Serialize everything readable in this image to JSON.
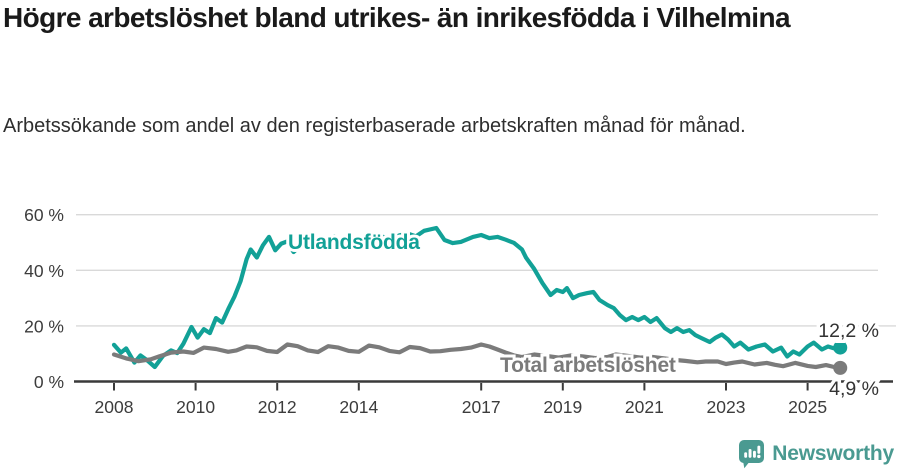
{
  "header": {
    "title": "Högre arbetslöshet bland utrikes- än inrikesfödda i Vilhelmina",
    "subtitle": "Arbetssökande som andel av den registerbaserade arbetskraften månad för månad."
  },
  "chart_data": {
    "type": "line",
    "title": "Högre arbetslöshet bland utrikes- än inrikesfödda i Vilhelmina",
    "subtitle": "Arbetssökande som andel av den registerbaserade arbetskraften månad för månad.",
    "xlabel": "",
    "ylabel": "",
    "grid": true,
    "ylim": [
      0,
      60
    ],
    "xlim": [
      2008,
      2026
    ],
    "yticks": [
      {
        "value": 0,
        "label": "0 %"
      },
      {
        "value": 20,
        "label": "20 %"
      },
      {
        "value": 40,
        "label": "40 %"
      },
      {
        "value": 60,
        "label": "60 %"
      }
    ],
    "xticks": [
      {
        "value": 2008,
        "label": "2008"
      },
      {
        "value": 2010,
        "label": "2010"
      },
      {
        "value": 2012,
        "label": "2012"
      },
      {
        "value": 2014,
        "label": "2014"
      },
      {
        "value": 2017,
        "label": "2017"
      },
      {
        "value": 2019,
        "label": "2019"
      },
      {
        "value": 2021,
        "label": "2021"
      },
      {
        "value": 2023,
        "label": "2023"
      },
      {
        "value": 2025,
        "label": "2025"
      }
    ],
    "series": [
      {
        "id": "utlandsfodda",
        "label": "Utlandsfödda",
        "color": "#12a197",
        "end_label": "12,2 %",
        "end_value": 12.2,
        "points": [
          [
            2008.0,
            13.2
          ],
          [
            2008.17,
            10.4
          ],
          [
            2008.3,
            11.9
          ],
          [
            2008.5,
            6.8
          ],
          [
            2008.65,
            9.4
          ],
          [
            2008.8,
            7.8
          ],
          [
            2009.0,
            5.2
          ],
          [
            2009.2,
            9.2
          ],
          [
            2009.4,
            11.2
          ],
          [
            2009.55,
            10.2
          ],
          [
            2009.7,
            13.6
          ],
          [
            2009.9,
            19.6
          ],
          [
            2010.05,
            15.8
          ],
          [
            2010.2,
            18.8
          ],
          [
            2010.35,
            17.4
          ],
          [
            2010.5,
            22.8
          ],
          [
            2010.65,
            21.2
          ],
          [
            2010.8,
            26.0
          ],
          [
            2010.95,
            30.5
          ],
          [
            2011.1,
            36.0
          ],
          [
            2011.25,
            44.0
          ],
          [
            2011.35,
            47.5
          ],
          [
            2011.5,
            44.6
          ],
          [
            2011.65,
            49.0
          ],
          [
            2011.8,
            52.0
          ],
          [
            2011.95,
            47.2
          ],
          [
            2012.1,
            49.6
          ],
          [
            2012.25,
            50.4
          ],
          [
            2012.4,
            46.6
          ],
          [
            2012.6,
            49.2
          ],
          [
            2012.8,
            50.2
          ],
          [
            2013.0,
            48.6
          ],
          [
            2013.2,
            50.8
          ],
          [
            2013.4,
            52.2
          ],
          [
            2013.6,
            50.2
          ],
          [
            2013.8,
            48.8
          ],
          [
            2014.0,
            49.6
          ],
          [
            2014.2,
            48.2
          ],
          [
            2014.4,
            50.6
          ],
          [
            2014.6,
            52.0
          ],
          [
            2014.8,
            51.2
          ],
          [
            2015.0,
            52.6
          ],
          [
            2015.2,
            53.2
          ],
          [
            2015.4,
            52.2
          ],
          [
            2015.6,
            54.2
          ],
          [
            2015.9,
            55.2
          ],
          [
            2016.1,
            50.9
          ],
          [
            2016.3,
            49.8
          ],
          [
            2016.5,
            50.2
          ],
          [
            2016.8,
            52.0
          ],
          [
            2017.0,
            52.7
          ],
          [
            2017.2,
            51.6
          ],
          [
            2017.4,
            52.0
          ],
          [
            2017.6,
            51.0
          ],
          [
            2017.8,
            49.9
          ],
          [
            2018.0,
            47.5
          ],
          [
            2018.1,
            44.5
          ],
          [
            2018.3,
            40.5
          ],
          [
            2018.5,
            35.4
          ],
          [
            2018.7,
            31.1
          ],
          [
            2018.85,
            32.9
          ],
          [
            2019.0,
            32.2
          ],
          [
            2019.1,
            33.6
          ],
          [
            2019.25,
            30.0
          ],
          [
            2019.4,
            31.1
          ],
          [
            2019.6,
            31.8
          ],
          [
            2019.75,
            32.2
          ],
          [
            2019.9,
            29.3
          ],
          [
            2020.1,
            27.5
          ],
          [
            2020.25,
            26.4
          ],
          [
            2020.4,
            23.9
          ],
          [
            2020.55,
            22.1
          ],
          [
            2020.7,
            23.2
          ],
          [
            2020.85,
            22.1
          ],
          [
            2021.0,
            23.2
          ],
          [
            2021.15,
            21.4
          ],
          [
            2021.3,
            22.8
          ],
          [
            2021.5,
            19.2
          ],
          [
            2021.65,
            17.8
          ],
          [
            2021.8,
            19.2
          ],
          [
            2021.95,
            17.8
          ],
          [
            2022.1,
            18.5
          ],
          [
            2022.25,
            16.7
          ],
          [
            2022.4,
            15.6
          ],
          [
            2022.6,
            14.2
          ],
          [
            2022.75,
            15.8
          ],
          [
            2022.9,
            16.9
          ],
          [
            2023.05,
            15.1
          ],
          [
            2023.2,
            12.6
          ],
          [
            2023.35,
            14.0
          ],
          [
            2023.55,
            11.5
          ],
          [
            2023.75,
            12.6
          ],
          [
            2023.95,
            13.3
          ],
          [
            2024.15,
            10.8
          ],
          [
            2024.35,
            12.2
          ],
          [
            2024.5,
            9.0
          ],
          [
            2024.65,
            10.8
          ],
          [
            2024.8,
            9.7
          ],
          [
            2025.0,
            12.6
          ],
          [
            2025.15,
            14.0
          ],
          [
            2025.35,
            11.5
          ],
          [
            2025.5,
            12.6
          ],
          [
            2025.65,
            11.9
          ],
          [
            2025.8,
            12.2
          ]
        ]
      },
      {
        "id": "total",
        "label": "Total arbetslöshet",
        "color": "#7b7b7b",
        "end_label": "4,9 %",
        "end_value": 4.9,
        "points": [
          [
            2008.0,
            9.7
          ],
          [
            2008.3,
            8.3
          ],
          [
            2008.6,
            7.3
          ],
          [
            2008.9,
            8.0
          ],
          [
            2009.1,
            9.0
          ],
          [
            2009.4,
            10.4
          ],
          [
            2009.7,
            10.8
          ],
          [
            2009.95,
            10.3
          ],
          [
            2010.2,
            12.2
          ],
          [
            2010.5,
            11.7
          ],
          [
            2010.8,
            10.7
          ],
          [
            2011.0,
            11.2
          ],
          [
            2011.25,
            12.6
          ],
          [
            2011.5,
            12.3
          ],
          [
            2011.75,
            11.0
          ],
          [
            2012.0,
            10.6
          ],
          [
            2012.25,
            13.3
          ],
          [
            2012.5,
            12.7
          ],
          [
            2012.75,
            11.2
          ],
          [
            2013.0,
            10.6
          ],
          [
            2013.25,
            12.7
          ],
          [
            2013.5,
            12.2
          ],
          [
            2013.75,
            11.0
          ],
          [
            2014.0,
            10.7
          ],
          [
            2014.25,
            12.9
          ],
          [
            2014.5,
            12.3
          ],
          [
            2014.75,
            11.0
          ],
          [
            2015.0,
            10.5
          ],
          [
            2015.25,
            12.4
          ],
          [
            2015.5,
            12.0
          ],
          [
            2015.75,
            10.8
          ],
          [
            2016.0,
            10.9
          ],
          [
            2016.25,
            11.4
          ],
          [
            2016.5,
            11.7
          ],
          [
            2016.75,
            12.2
          ],
          [
            2017.0,
            13.3
          ],
          [
            2017.2,
            12.6
          ],
          [
            2017.4,
            11.5
          ],
          [
            2017.6,
            10.4
          ],
          [
            2017.8,
            9.4
          ],
          [
            2018.0,
            8.8
          ],
          [
            2018.3,
            9.7
          ],
          [
            2018.6,
            9.2
          ],
          [
            2018.9,
            8.6
          ],
          [
            2019.2,
            9.4
          ],
          [
            2019.5,
            9.0
          ],
          [
            2019.8,
            8.4
          ],
          [
            2020.1,
            8.8
          ],
          [
            2020.3,
            9.7
          ],
          [
            2020.6,
            9.2
          ],
          [
            2020.9,
            8.6
          ],
          [
            2021.2,
            8.8
          ],
          [
            2021.5,
            8.3
          ],
          [
            2021.8,
            7.7
          ],
          [
            2022.0,
            7.4
          ],
          [
            2022.3,
            6.9
          ],
          [
            2022.5,
            7.2
          ],
          [
            2022.8,
            7.2
          ],
          [
            2023.0,
            6.3
          ],
          [
            2023.2,
            6.8
          ],
          [
            2023.4,
            7.2
          ],
          [
            2023.7,
            6.1
          ],
          [
            2024.0,
            6.7
          ],
          [
            2024.2,
            6.0
          ],
          [
            2024.4,
            5.5
          ],
          [
            2024.7,
            6.7
          ],
          [
            2025.0,
            5.6
          ],
          [
            2025.2,
            5.2
          ],
          [
            2025.45,
            5.9
          ],
          [
            2025.65,
            5.2
          ],
          [
            2025.8,
            4.9
          ]
        ]
      }
    ],
    "legend_position": "inline-line-labels"
  },
  "branding": {
    "logo_text": "Newsworthy",
    "logo_color": "#4a9a91"
  },
  "colors": {
    "accent_teal": "#12a197",
    "series_gray": "#7b7b7b",
    "grid": "#d9d9d9",
    "axis": "#3a3a3a",
    "text_dark": "#1a1a1a",
    "text_medium": "#2e2e2e",
    "tick_text": "#3c3c3c",
    "end_label_text": "#333333"
  }
}
